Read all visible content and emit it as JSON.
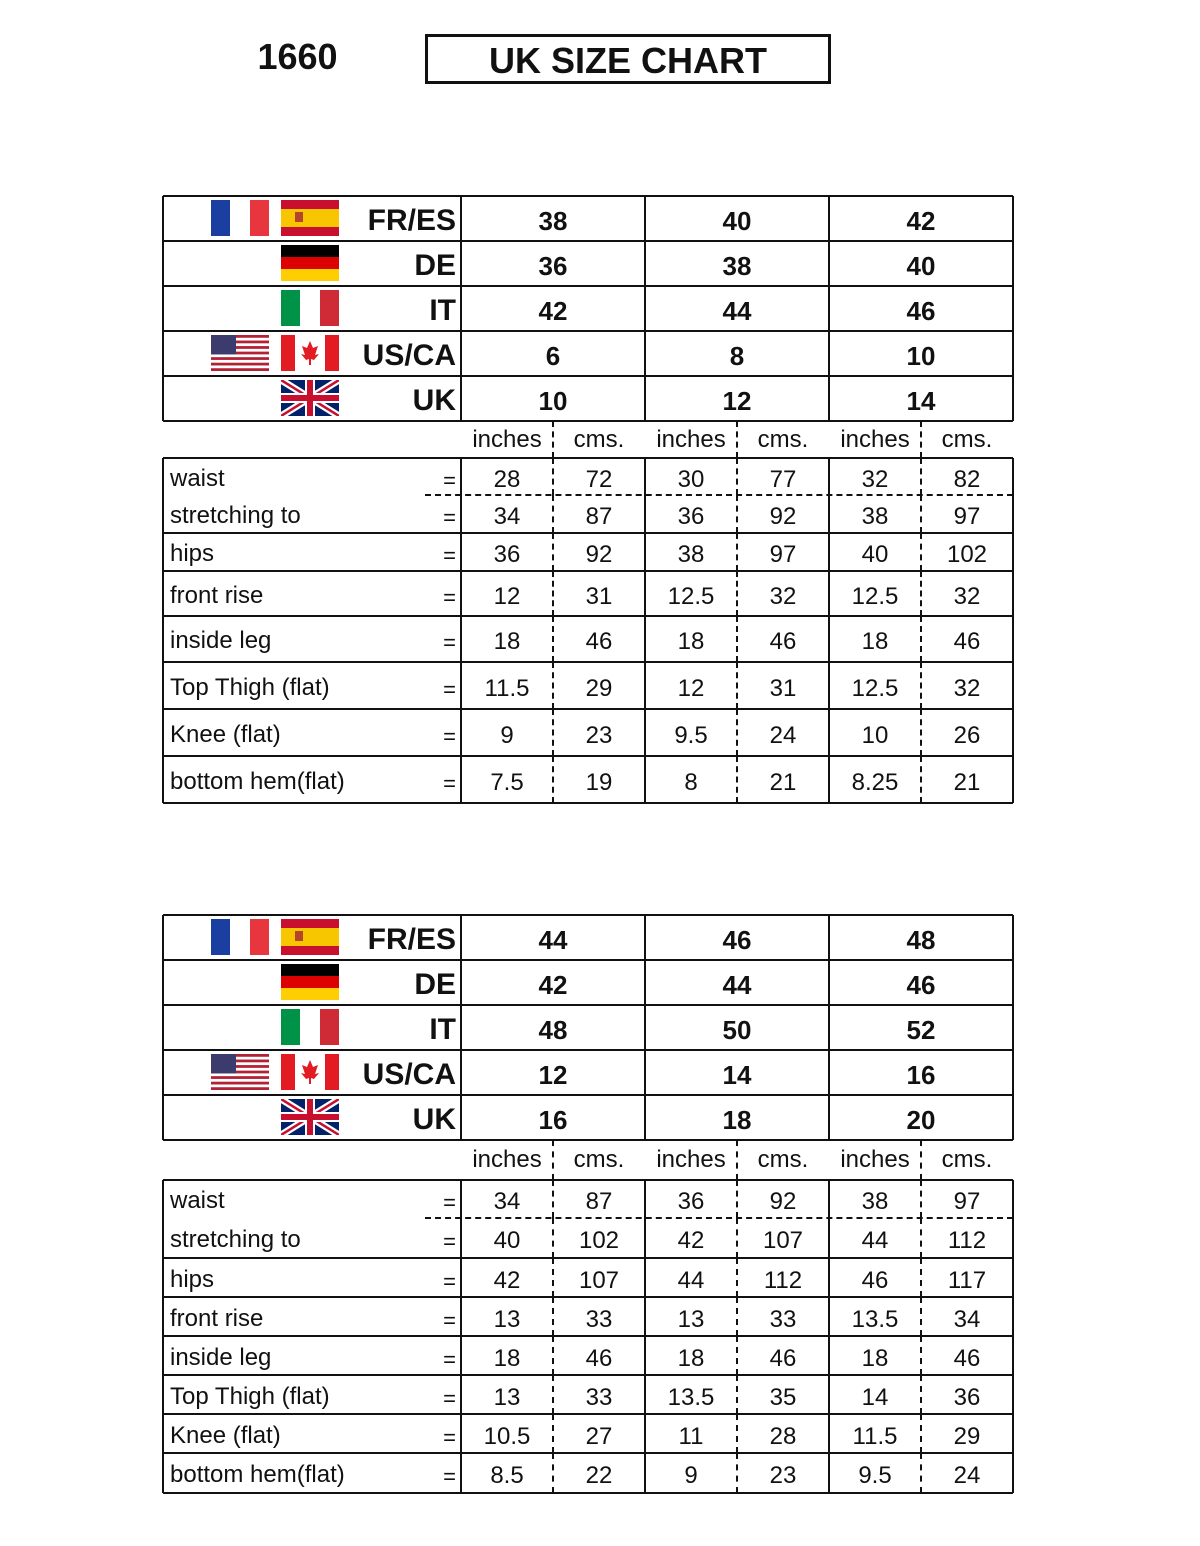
{
  "header": {
    "code": "1660",
    "title": "UK SIZE CHART"
  },
  "tables": [
    {
      "size_rows": [
        {
          "label": "FR/ES",
          "sizes": [
            "38",
            "40",
            "42"
          ]
        },
        {
          "label": "DE",
          "sizes": [
            "36",
            "38",
            "40"
          ]
        },
        {
          "label": "IT",
          "sizes": [
            "42",
            "44",
            "46"
          ]
        },
        {
          "label": "US/CA",
          "sizes": [
            "6",
            "8",
            "10"
          ]
        },
        {
          "label": "UK",
          "sizes": [
            "10",
            "12",
            "14"
          ]
        }
      ],
      "units": [
        "inches",
        "cms.",
        "inches",
        "cms.",
        "inches",
        "cms."
      ],
      "measure_rows": [
        {
          "label": "waist",
          "sign": "=",
          "values": [
            "28",
            "72",
            "30",
            "77",
            "32",
            "82"
          ]
        },
        {
          "label": "stretching to",
          "sign": "=",
          "values": [
            "34",
            "87",
            "36",
            "92",
            "38",
            "97"
          ]
        },
        {
          "label": "hips",
          "sign": "=",
          "values": [
            "36",
            "92",
            "38",
            "97",
            "40",
            "102"
          ]
        },
        {
          "label": "front rise",
          "sign": "=",
          "values": [
            "12",
            "31",
            "12.5",
            "32",
            "12.5",
            "32"
          ]
        },
        {
          "label": "inside leg",
          "sign": "=",
          "values": [
            "18",
            "46",
            "18",
            "46",
            "18",
            "46"
          ]
        },
        {
          "label": "Top Thigh (flat)",
          "sign": "=",
          "values": [
            "11.5",
            "29",
            "12",
            "31",
            "12.5",
            "32"
          ]
        },
        {
          "label": "Knee (flat)",
          "sign": "=",
          "values": [
            "9",
            "23",
            "9.5",
            "24",
            "10",
            "26"
          ]
        },
        {
          "label": "bottom hem(flat)",
          "sign": "=",
          "values": [
            "7.5",
            "19",
            "8",
            "21",
            "8.25",
            "21"
          ]
        }
      ]
    },
    {
      "size_rows": [
        {
          "label": "FR/ES",
          "sizes": [
            "44",
            "46",
            "48"
          ]
        },
        {
          "label": "DE",
          "sizes": [
            "42",
            "44",
            "46"
          ]
        },
        {
          "label": "IT",
          "sizes": [
            "48",
            "50",
            "52"
          ]
        },
        {
          "label": "US/CA",
          "sizes": [
            "12",
            "14",
            "16"
          ]
        },
        {
          "label": "UK",
          "sizes": [
            "16",
            "18",
            "20"
          ]
        }
      ],
      "units": [
        "inches",
        "cms.",
        "inches",
        "cms.",
        "inches",
        "cms."
      ],
      "measure_rows": [
        {
          "label": "waist",
          "sign": "=",
          "values": [
            "34",
            "87",
            "36",
            "92",
            "38",
            "97"
          ]
        },
        {
          "label": "stretching to",
          "sign": "=",
          "values": [
            "40",
            "102",
            "42",
            "107",
            "44",
            "112"
          ]
        },
        {
          "label": "hips",
          "sign": "=",
          "values": [
            "42",
            "107",
            "44",
            "112",
            "46",
            "117"
          ]
        },
        {
          "label": "front rise",
          "sign": "=",
          "values": [
            "13",
            "33",
            "13",
            "33",
            "13.5",
            "34"
          ]
        },
        {
          "label": "inside leg",
          "sign": "=",
          "values": [
            "18",
            "46",
            "18",
            "46",
            "18",
            "46"
          ]
        },
        {
          "label": "Top Thigh (flat)",
          "sign": "=",
          "values": [
            "13",
            "33",
            "13.5",
            "35",
            "14",
            "36"
          ]
        },
        {
          "label": "Knee (flat)",
          "sign": "=",
          "values": [
            "10.5",
            "27",
            "11",
            "28",
            "11.5",
            "29"
          ]
        },
        {
          "label": "bottom hem(flat)",
          "sign": "=",
          "values": [
            "8.5",
            "22",
            "9",
            "23",
            "9.5",
            "24"
          ]
        }
      ]
    }
  ]
}
